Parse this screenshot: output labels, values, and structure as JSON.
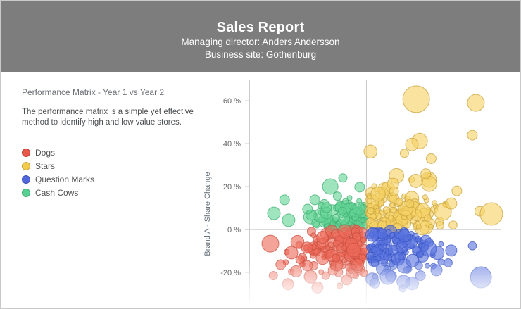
{
  "header": {
    "title": "Sales Report",
    "subtitle_line1": "Managing director: Anders Andersson",
    "subtitle_line2": "Business site: Gothenburg",
    "background": "#7d7d7d",
    "text_color": "#ffffff"
  },
  "info_panel": {
    "title": "Performance Matrix - Year 1 vs Year 2",
    "description_line1": "The performance matrix is a simple yet effective",
    "description_line2": "method to identify high and low value stores."
  },
  "legend": {
    "items": [
      {
        "label": "Dogs",
        "color": "#e8574a",
        "border": "#c13c30"
      },
      {
        "label": "Stars",
        "color": "#f2ca4c",
        "border": "#c7a23e"
      },
      {
        "label": "Question Marks",
        "color": "#5068dc",
        "border": "#3a50bb"
      },
      {
        "label": "Cash Cows",
        "color": "#57d091",
        "border": "#3fae71"
      }
    ]
  },
  "chart_data": {
    "type": "bubble",
    "title": "Performance Matrix - Year 1 vs Year 2",
    "ylabel": "Brand A - Share Change",
    "y_ticks": [
      {
        "label": "60 %",
        "value": 60
      },
      {
        "label": "40 %",
        "value": 40
      },
      {
        "label": "20 %",
        "value": 20
      },
      {
        "label": "0 %",
        "value": 0
      },
      {
        "label": "-20 %",
        "value": -20
      }
    ],
    "ylim": [
      -37,
      70
    ],
    "xlim": [
      0,
      100
    ],
    "x_axis_labels_visible": false,
    "quadrant_divider_x": 43.8,
    "zero_line_y": 0,
    "legend_position": "left-panel",
    "grid": "quadrant lines only",
    "axis_color": "#cccccc",
    "tick_label_color": "#666666",
    "seed": 42,
    "series": [
      {
        "name": "Cash Cows",
        "quadrant": "upper-left",
        "color": "#62d494",
        "border": "#3fae71",
        "cluster": {
          "cx": 38,
          "cy": 5.5,
          "sx": 8,
          "sy": 5,
          "count": 95,
          "r_min": 3.5,
          "r_max": 10
        },
        "fold": {
          "x_type": "max",
          "x_at": 43.0,
          "y_type": "min",
          "y_at": 0.7
        },
        "outliers": [
          [
            30.3,
            20,
            11
          ],
          [
            24.5,
            13.8,
            7
          ],
          [
            13.2,
            13.8,
            7
          ],
          [
            9.2,
            7.5,
            9
          ],
          [
            14.7,
            4.3,
            9
          ],
          [
            28.9,
            10.2,
            7
          ],
          [
            21.8,
            9.5,
            7
          ],
          [
            41.3,
            19.7,
            7
          ],
          [
            35,
            24,
            6
          ],
          [
            33,
            15.5,
            6
          ]
        ]
      },
      {
        "name": "Stars",
        "quadrant": "upper-right",
        "color": "#f6d264",
        "border": "#c8a23e",
        "cluster": {
          "cx": 55,
          "cy": 9,
          "sx": 9,
          "sy": 8,
          "count": 130,
          "r_min": 3.5,
          "r_max": 11
        },
        "fold": {
          "x_type": "min",
          "x_at": 44.8,
          "y_type": "min",
          "y_at": 0.7
        },
        "outliers": [
          [
            62.4,
            60.7,
            19
          ],
          [
            84.7,
            59,
            12
          ],
          [
            83.4,
            43.9,
            7
          ],
          [
            63.7,
            41.2,
            11
          ],
          [
            60.8,
            39.6,
            9
          ],
          [
            72.4,
            8.2,
            12
          ],
          [
            77.6,
            18,
            7
          ],
          [
            75.5,
            12.1,
            8
          ],
          [
            90.5,
            7.2,
            16
          ],
          [
            68,
            33,
            7
          ],
          [
            58,
            35.5,
            6
          ],
          [
            66,
            26,
            7
          ]
        ]
      },
      {
        "name": "Dogs",
        "quadrant": "lower-left",
        "color": "#ed6b5b",
        "border": "#c94f3f",
        "cluster": {
          "cx": 35.5,
          "cy": -9.5,
          "sx": 10,
          "sy": 7,
          "count": 150,
          "r_min": 3.5,
          "r_max": 10
        },
        "fold": {
          "x_type": "max",
          "x_at": 43.0,
          "y_type": "max",
          "y_at": -0.7
        },
        "outliers": [
          [
            7.9,
            -6.6,
            12
          ],
          [
            15.8,
            -10.8,
            9
          ],
          [
            21.6,
            -8.5,
            8
          ],
          [
            11.8,
            -16.4,
            7
          ],
          [
            17.5,
            -19.5,
            8
          ],
          [
            22.9,
            -22,
            9
          ],
          [
            14.5,
            -25.5,
            8
          ],
          [
            25.5,
            -27,
            8
          ],
          [
            9,
            -21.5,
            6
          ],
          [
            19,
            -14,
            6
          ]
        ]
      },
      {
        "name": "Question Marks",
        "quadrant": "lower-right",
        "color": "#5873df",
        "border": "#3b55c4",
        "cluster": {
          "cx": 54,
          "cy": -9.5,
          "sx": 9,
          "sy": 6.5,
          "count": 125,
          "r_min": 3.5,
          "r_max": 10
        },
        "fold": {
          "x_type": "min",
          "x_at": 44.8,
          "y_type": "max",
          "y_at": -0.7
        },
        "outliers": [
          [
            86.6,
            -22.3,
            15
          ],
          [
            67.1,
            -8.9,
            11
          ],
          [
            57.9,
            -17,
            10
          ],
          [
            51.8,
            -22,
            11
          ],
          [
            61,
            -14.5,
            9
          ],
          [
            75.5,
            -9.8,
            8
          ],
          [
            70,
            -19,
            8
          ],
          [
            64,
            -21.5,
            7
          ],
          [
            47,
            -25,
            7
          ]
        ]
      }
    ]
  }
}
